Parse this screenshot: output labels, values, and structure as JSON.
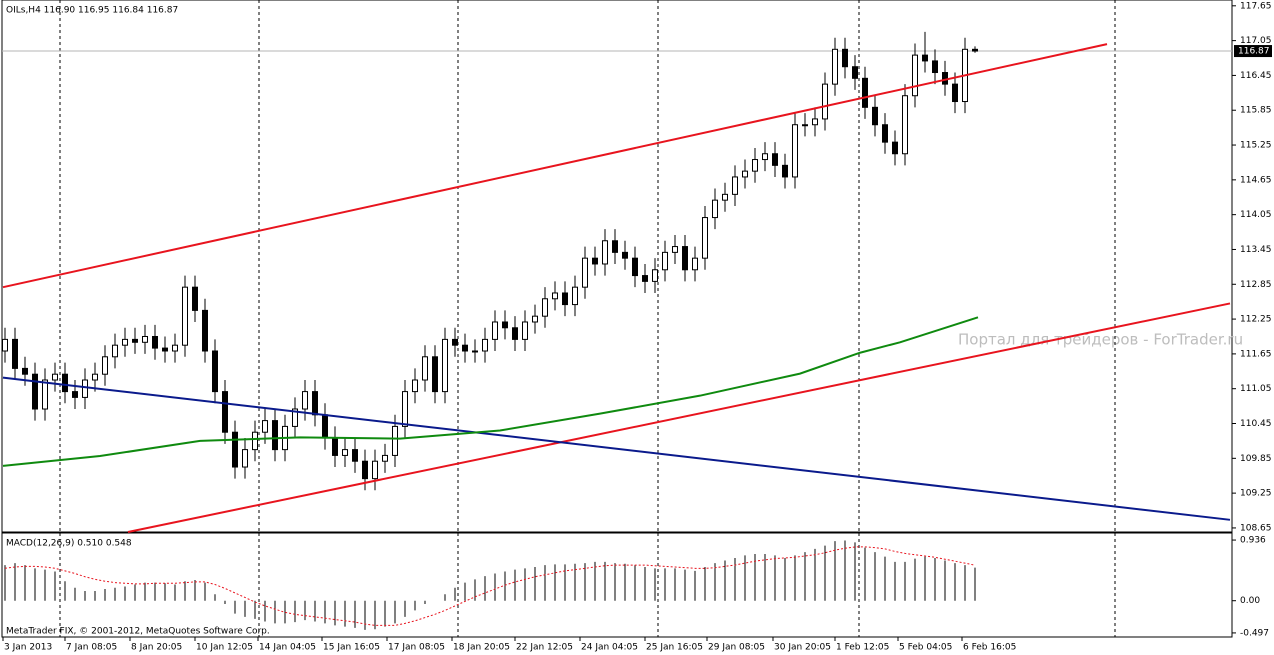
{
  "chart_data": [
    {
      "type": "candlestick",
      "header": "OILs,H4 116.90 116.95 116.84 116.87",
      "watermark": "Портал для трейдеров - ForTrader.ru",
      "last_price": 116.87,
      "xlim": [
        -0.3,
        122.7
      ],
      "ylim": [
        108.58,
        117.75
      ],
      "yticks": [
        117.65,
        117.05,
        116.45,
        115.85,
        115.25,
        114.65,
        114.05,
        113.45,
        112.85,
        112.25,
        111.65,
        111.05,
        110.45,
        109.85,
        109.25,
        108.65
      ],
      "vgrid": [
        5.5,
        25.4,
        45.3,
        65.3,
        85.4,
        111
      ],
      "xlabels": [
        {
          "value": -0.2,
          "label": "3 Jan 2013"
        },
        {
          "value": 6,
          "label": "7 Jan 08:05"
        },
        {
          "value": 12.5,
          "label": "8 Jan 20:05"
        },
        {
          "value": 19,
          "label": "10 Jan 12:05"
        },
        {
          "value": 25.3,
          "label": "14 Jan 04:05"
        },
        {
          "value": 31.7,
          "label": "15 Jan 16:05"
        },
        {
          "value": 38.2,
          "label": "17 Jan 08:05"
        },
        {
          "value": 44.7,
          "label": "18 Jan 20:05"
        },
        {
          "value": 51,
          "label": "22 Jan 12:05"
        },
        {
          "value": 57.5,
          "label": "24 Jan 04:05"
        },
        {
          "value": 64,
          "label": "25 Jan 16:05"
        },
        {
          "value": 70.2,
          "label": "29 Jan 08:05"
        },
        {
          "value": 76.8,
          "label": "30 Jan 20:05"
        },
        {
          "value": 83,
          "label": "1 Feb 12:05"
        },
        {
          "value": 89.3,
          "label": "5 Feb 04:05"
        },
        {
          "value": 95.7,
          "label": "6 Feb 16:05"
        }
      ],
      "open": [
        111.7,
        111.9,
        111.4,
        111.3,
        110.7,
        111.2,
        111.3,
        111.0,
        110.9,
        111.2,
        111.3,
        111.6,
        111.8,
        111.9,
        111.85,
        111.95,
        111.75,
        111.7,
        111.8,
        112.8,
        112.4,
        111.7,
        111.0,
        110.3,
        109.7,
        110.0,
        110.3,
        110.5,
        110.0,
        110.4,
        110.7,
        111.0,
        110.6,
        110.2,
        109.9,
        110.0,
        109.8,
        109.5,
        109.8,
        109.9,
        110.4,
        111.0,
        111.2,
        111.6,
        111.0,
        111.9,
        111.8,
        111.7,
        111.7,
        111.9,
        112.2,
        112.1,
        111.9,
        112.2,
        112.3,
        112.6,
        112.7,
        112.5,
        112.8,
        113.3,
        113.2,
        113.6,
        113.4,
        113.3,
        113.0,
        112.9,
        113.1,
        113.4,
        113.5,
        113.1,
        113.3,
        114.0,
        114.3,
        114.4,
        114.7,
        114.8,
        115.0,
        115.1,
        114.9,
        114.7,
        115.6,
        115.6,
        115.7,
        116.3,
        116.9,
        116.6,
        116.4,
        115.9,
        115.6,
        115.3,
        115.1,
        116.1,
        116.8,
        116.7,
        116.5,
        116.3,
        116.0,
        116.9
      ],
      "high": [
        112.1,
        112.1,
        111.6,
        111.5,
        111.4,
        111.5,
        111.5,
        111.2,
        111.4,
        111.5,
        111.8,
        112.0,
        112.1,
        112.1,
        112.15,
        112.15,
        111.95,
        112.0,
        113.0,
        113.0,
        112.6,
        111.9,
        111.2,
        110.5,
        110.2,
        110.5,
        110.7,
        110.7,
        110.6,
        110.9,
        111.2,
        111.2,
        110.8,
        110.4,
        110.2,
        110.2,
        110.0,
        110.0,
        110.1,
        110.6,
        111.2,
        111.4,
        111.8,
        111.8,
        112.1,
        112.1,
        112.0,
        111.9,
        112.1,
        112.4,
        112.4,
        112.3,
        112.4,
        112.5,
        112.8,
        112.9,
        112.9,
        113.0,
        113.5,
        113.5,
        113.8,
        113.8,
        113.6,
        113.5,
        113.2,
        113.3,
        113.6,
        113.7,
        113.7,
        113.5,
        114.2,
        114.5,
        114.6,
        114.9,
        115.0,
        115.2,
        115.3,
        115.3,
        115.1,
        115.8,
        115.8,
        115.9,
        116.5,
        117.1,
        117.1,
        116.8,
        116.6,
        116.1,
        115.8,
        115.5,
        116.3,
        117.0,
        117.2,
        116.9,
        116.7,
        116.5,
        117.1,
        116.95
      ],
      "low": [
        111.5,
        111.2,
        111.1,
        110.5,
        110.5,
        111.0,
        110.8,
        110.7,
        110.7,
        111.0,
        111.1,
        111.4,
        111.6,
        111.65,
        111.65,
        111.55,
        111.5,
        111.5,
        111.6,
        112.2,
        111.5,
        110.8,
        110.1,
        109.5,
        109.5,
        109.8,
        110.1,
        109.8,
        109.8,
        110.2,
        110.5,
        110.4,
        110.0,
        109.7,
        109.7,
        109.6,
        109.3,
        109.3,
        109.6,
        109.7,
        110.2,
        110.8,
        111.0,
        110.8,
        110.8,
        111.6,
        111.5,
        111.5,
        111.5,
        111.7,
        111.9,
        111.7,
        111.7,
        112.0,
        112.1,
        112.4,
        112.3,
        112.3,
        112.6,
        113.0,
        113.0,
        113.2,
        113.1,
        112.8,
        112.7,
        112.7,
        112.9,
        113.2,
        112.9,
        112.9,
        113.1,
        113.8,
        114.1,
        114.2,
        114.5,
        114.6,
        114.8,
        114.7,
        114.5,
        114.5,
        115.4,
        115.4,
        115.5,
        116.1,
        116.4,
        116.2,
        115.7,
        115.4,
        115.1,
        114.9,
        114.9,
        115.9,
        116.5,
        116.3,
        116.1,
        115.8,
        115.8,
        116.84
      ],
      "close": [
        111.9,
        111.4,
        111.3,
        110.7,
        111.2,
        111.3,
        111.0,
        110.9,
        111.2,
        111.3,
        111.6,
        111.8,
        111.9,
        111.85,
        111.95,
        111.75,
        111.7,
        111.8,
        112.8,
        112.4,
        111.7,
        111.0,
        110.3,
        109.7,
        110.0,
        110.3,
        110.5,
        110.0,
        110.4,
        110.7,
        111.0,
        110.6,
        110.2,
        109.9,
        110.0,
        109.8,
        109.5,
        109.8,
        109.9,
        110.4,
        111.0,
        111.2,
        111.6,
        111.0,
        111.9,
        111.8,
        111.7,
        111.7,
        111.9,
        112.2,
        112.1,
        111.9,
        112.2,
        112.3,
        112.6,
        112.7,
        112.5,
        112.8,
        113.3,
        113.2,
        113.6,
        113.4,
        113.3,
        113.0,
        112.9,
        113.1,
        113.4,
        113.5,
        113.1,
        113.3,
        114.0,
        114.3,
        114.4,
        114.7,
        114.8,
        115.0,
        115.1,
        114.9,
        114.7,
        115.6,
        115.6,
        115.7,
        116.3,
        116.9,
        116.6,
        116.4,
        115.9,
        115.6,
        115.3,
        115.1,
        116.1,
        116.8,
        116.7,
        116.5,
        116.3,
        116.0,
        116.9,
        116.87
      ],
      "lines": [
        {
          "color": "#e8141e",
          "x": [
            -0.2,
            110.2
          ],
          "y": [
            112.8,
            116.99
          ]
        },
        {
          "color": "#e8141e",
          "x": [
            12.3,
            122.5
          ],
          "y": [
            108.58,
            112.52
          ]
        },
        {
          "color": "#0a1a8c",
          "x": [
            -0.2,
            122.5
          ],
          "y": [
            111.24,
            108.79
          ]
        },
        {
          "color": "#0f8a0f",
          "x": [
            -0.2,
            9.5,
            19.5,
            29.5,
            39.5,
            49.5,
            59.5,
            69.5,
            79.5,
            85.5,
            89.5,
            97.3
          ],
          "y": [
            109.72,
            109.89,
            110.15,
            110.21,
            110.19,
            110.33,
            110.62,
            110.93,
            111.31,
            111.67,
            111.85,
            112.28
          ]
        }
      ]
    },
    {
      "type": "bar",
      "header": "MACD(12,26,9) 0.510 0.548",
      "footer": "MetaTrader FIX, © 2001-2012, MetaQuotes Software Corp.",
      "ylim": [
        -0.56,
        1.045
      ],
      "yticks": [
        0.936,
        {
          "value": 0,
          "label": "0.00"
        },
        -0.497
      ],
      "color": "#000000",
      "signal_color": "#e8141e",
      "values": [
        0.55,
        0.58,
        0.55,
        0.5,
        0.48,
        0.45,
        0.3,
        0.2,
        0.15,
        0.15,
        0.18,
        0.2,
        0.22,
        0.25,
        0.28,
        0.28,
        0.27,
        0.25,
        0.3,
        0.32,
        0.28,
        0.1,
        -0.05,
        -0.2,
        -0.25,
        -0.28,
        -0.32,
        -0.35,
        -0.35,
        -0.33,
        -0.3,
        -0.32,
        -0.35,
        -0.38,
        -0.4,
        -0.42,
        -0.45,
        -0.44,
        -0.4,
        -0.35,
        -0.25,
        -0.15,
        -0.05,
        0.0,
        0.1,
        0.2,
        0.28,
        0.33,
        0.38,
        0.42,
        0.45,
        0.48,
        0.5,
        0.52,
        0.55,
        0.56,
        0.56,
        0.57,
        0.58,
        0.6,
        0.6,
        0.58,
        0.57,
        0.55,
        0.52,
        0.5,
        0.5,
        0.5,
        0.48,
        0.46,
        0.52,
        0.58,
        0.62,
        0.66,
        0.7,
        0.72,
        0.72,
        0.7,
        0.66,
        0.7,
        0.75,
        0.8,
        0.85,
        0.92,
        0.93,
        0.9,
        0.82,
        0.75,
        0.68,
        0.6,
        0.6,
        0.65,
        0.68,
        0.66,
        0.62,
        0.58,
        0.55,
        0.51
      ],
      "signal": [
        0.5,
        0.52,
        0.53,
        0.53,
        0.52,
        0.5,
        0.46,
        0.42,
        0.37,
        0.33,
        0.3,
        0.28,
        0.27,
        0.26,
        0.26,
        0.27,
        0.27,
        0.27,
        0.28,
        0.29,
        0.29,
        0.25,
        0.19,
        0.12,
        0.05,
        -0.02,
        -0.08,
        -0.13,
        -0.18,
        -0.21,
        -0.23,
        -0.25,
        -0.27,
        -0.29,
        -0.31,
        -0.33,
        -0.36,
        -0.38,
        -0.38,
        -0.38,
        -0.35,
        -0.31,
        -0.26,
        -0.21,
        -0.15,
        -0.08,
        -0.01,
        0.06,
        0.12,
        0.18,
        0.24,
        0.29,
        0.33,
        0.37,
        0.4,
        0.43,
        0.46,
        0.48,
        0.5,
        0.52,
        0.54,
        0.55,
        0.55,
        0.55,
        0.55,
        0.54,
        0.53,
        0.52,
        0.51,
        0.5,
        0.5,
        0.51,
        0.53,
        0.55,
        0.58,
        0.61,
        0.63,
        0.65,
        0.66,
        0.67,
        0.69,
        0.71,
        0.74,
        0.78,
        0.81,
        0.83,
        0.83,
        0.82,
        0.8,
        0.76,
        0.73,
        0.71,
        0.69,
        0.67,
        0.64,
        0.61,
        0.58,
        0.548
      ]
    }
  ]
}
